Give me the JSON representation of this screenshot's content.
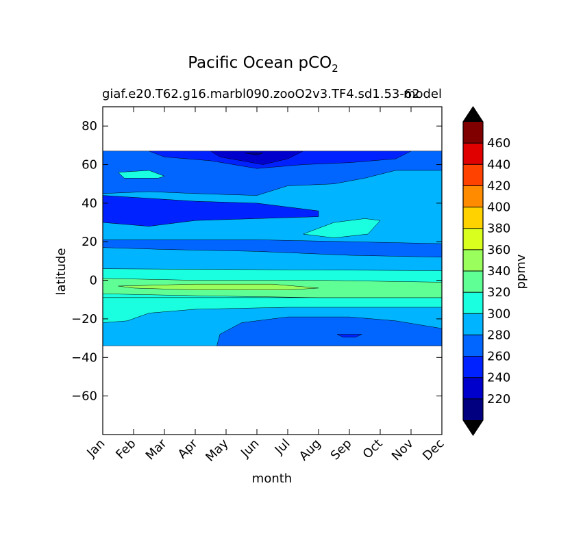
{
  "chart_data": {
    "type": "heatmap",
    "subtype": "filled-contour",
    "title_main": "Pacific Ocean pCO",
    "title_subscript": "2",
    "subtitle_left": "giaf.e20.T62.g16.marbl090.zooO2v3.TF4.sd1.53-62",
    "subtitle_right": "model",
    "xlabel": "month",
    "ylabel": "latitude",
    "x_categories": [
      "Jan",
      "Feb",
      "Mar",
      "Apr",
      "May",
      "Jun",
      "Jul",
      "Aug",
      "Sep",
      "Oct",
      "Nov",
      "Dec"
    ],
    "y_ticks": [
      80,
      60,
      40,
      20,
      0,
      -20,
      -40,
      -60
    ],
    "y_tick_labels": [
      "80",
      "60",
      "40",
      "20",
      "0",
      "−20",
      "−40",
      "−60"
    ],
    "ylim": [
      -80,
      90
    ],
    "data_extent": {
      "lat_min": -34,
      "lat_max": 67
    },
    "colorbar": {
      "label": "ppmv",
      "levels": [
        200,
        220,
        240,
        260,
        280,
        300,
        320,
        340,
        360,
        380,
        400,
        420,
        440,
        460,
        480
      ],
      "tick_labels": [
        "220",
        "240",
        "260",
        "280",
        "300",
        "320",
        "340",
        "360",
        "380",
        "400",
        "420",
        "440",
        "460"
      ],
      "colors": [
        "#000080",
        "#0000cd",
        "#0022ff",
        "#0066ff",
        "#00b4ff",
        "#1affe0",
        "#60ff96",
        "#9aff5c",
        "#d8ff1e",
        "#ffd200",
        "#ff8c00",
        "#ff4200",
        "#e00000",
        "#800000"
      ],
      "extend": "both",
      "under_color": "#000000",
      "over_color": "#000000"
    },
    "contour_bands": [
      {
        "level": 280,
        "region": "background",
        "points": []
      },
      {
        "level": 260,
        "region": "north-pacific-40-60N",
        "points": [
          [
            0,
            67
          ],
          [
            11,
            67
          ],
          [
            11,
            57
          ],
          [
            9.5,
            57
          ],
          [
            8.5,
            53
          ],
          [
            7.5,
            50
          ],
          [
            6,
            49
          ],
          [
            5,
            44
          ],
          [
            3,
            45
          ],
          [
            1.5,
            46
          ],
          [
            0,
            45
          ]
        ]
      },
      {
        "level": 240,
        "region": "north-pacific-25-45N",
        "points": [
          [
            0,
            44
          ],
          [
            1,
            43
          ],
          [
            3,
            41
          ],
          [
            5,
            40
          ],
          [
            6.5,
            37
          ],
          [
            7,
            36
          ],
          [
            7,
            33
          ],
          [
            5,
            32
          ],
          [
            3,
            31
          ],
          [
            1.5,
            28
          ],
          [
            0,
            30
          ]
        ]
      },
      {
        "level": 240,
        "region": "subarctic-core",
        "points": [
          [
            1.5,
            67
          ],
          [
            10,
            67
          ],
          [
            9.5,
            63
          ],
          [
            8,
            61
          ],
          [
            6.5,
            60
          ],
          [
            5,
            58
          ],
          [
            3.5,
            62
          ],
          [
            2,
            64
          ]
        ]
      },
      {
        "level": 220,
        "region": "subarctic-summer-low",
        "points": [
          [
            3.5,
            67
          ],
          [
            6.5,
            67
          ],
          [
            6,
            63
          ],
          [
            5.2,
            60
          ],
          [
            4.5,
            62
          ],
          [
            3.8,
            64
          ]
        ]
      },
      {
        "level": 200,
        "region": "jun-minimum",
        "points": [
          [
            4.6,
            66
          ],
          [
            5.2,
            66
          ],
          [
            5.0,
            65
          ]
        ]
      },
      {
        "level": 260,
        "region": "equatorial-south-low",
        "points": [
          [
            0,
            17
          ],
          [
            2,
            16
          ],
          [
            5,
            15
          ],
          [
            8,
            13
          ],
          [
            11,
            12
          ],
          [
            11,
            19
          ],
          [
            8,
            20
          ],
          [
            5,
            21
          ],
          [
            2,
            21
          ],
          [
            0,
            21
          ]
        ]
      },
      {
        "level": 260,
        "region": "south-pacific-30S",
        "points": [
          [
            3.7,
            -34
          ],
          [
            11,
            -34
          ],
          [
            11,
            -25
          ],
          [
            9.5,
            -21
          ],
          [
            8,
            -19
          ],
          [
            6,
            -19
          ],
          [
            4.5,
            -22
          ],
          [
            3.8,
            -28
          ]
        ]
      },
      {
        "level": 240,
        "region": "south-pacific-small",
        "points": [
          [
            7.6,
            -28
          ],
          [
            8.4,
            -28
          ],
          [
            8.2,
            -29.5
          ],
          [
            7.8,
            -29.5
          ]
        ]
      },
      {
        "level": 300,
        "region": "equatorial-band",
        "points": [
          [
            0,
            6
          ],
          [
            11,
            5
          ],
          [
            11,
            -9
          ],
          [
            0,
            -9
          ]
        ]
      },
      {
        "level": 300,
        "region": "south-tropical-tongue",
        "points": [
          [
            0,
            -9
          ],
          [
            11,
            -9
          ],
          [
            11,
            -14
          ],
          [
            6,
            -14
          ],
          [
            3,
            -15
          ],
          [
            1.5,
            -17
          ],
          [
            0.8,
            -21
          ],
          [
            0,
            -22
          ]
        ]
      },
      {
        "level": 320,
        "region": "equatorial-cold-tongue",
        "points": [
          [
            0,
            1
          ],
          [
            3,
            0
          ],
          [
            7,
            0
          ],
          [
            11,
            -1
          ],
          [
            11,
            -9
          ],
          [
            7,
            -9
          ],
          [
            3,
            -8
          ],
          [
            0,
            -7
          ]
        ]
      },
      {
        "level": 340,
        "region": "equatorial-peak",
        "points": [
          [
            0.5,
            -3
          ],
          [
            3,
            -2
          ],
          [
            5.5,
            -2
          ],
          [
            7,
            -4
          ],
          [
            6,
            -5
          ],
          [
            3,
            -5
          ],
          [
            1,
            -4
          ]
        ]
      },
      {
        "level": 300,
        "region": "north-pacific-summer-patch",
        "points": [
          [
            6.5,
            24
          ],
          [
            7.5,
            30
          ],
          [
            8.5,
            32
          ],
          [
            9,
            31
          ],
          [
            8.6,
            24
          ],
          [
            7.5,
            22
          ]
        ]
      },
      {
        "level": 300,
        "region": "northwest-pacific-winter-patch",
        "points": [
          [
            0.5,
            56
          ],
          [
            1.5,
            57
          ],
          [
            2,
            54
          ],
          [
            1.8,
            53
          ],
          [
            0.7,
            53
          ]
        ]
      }
    ]
  }
}
